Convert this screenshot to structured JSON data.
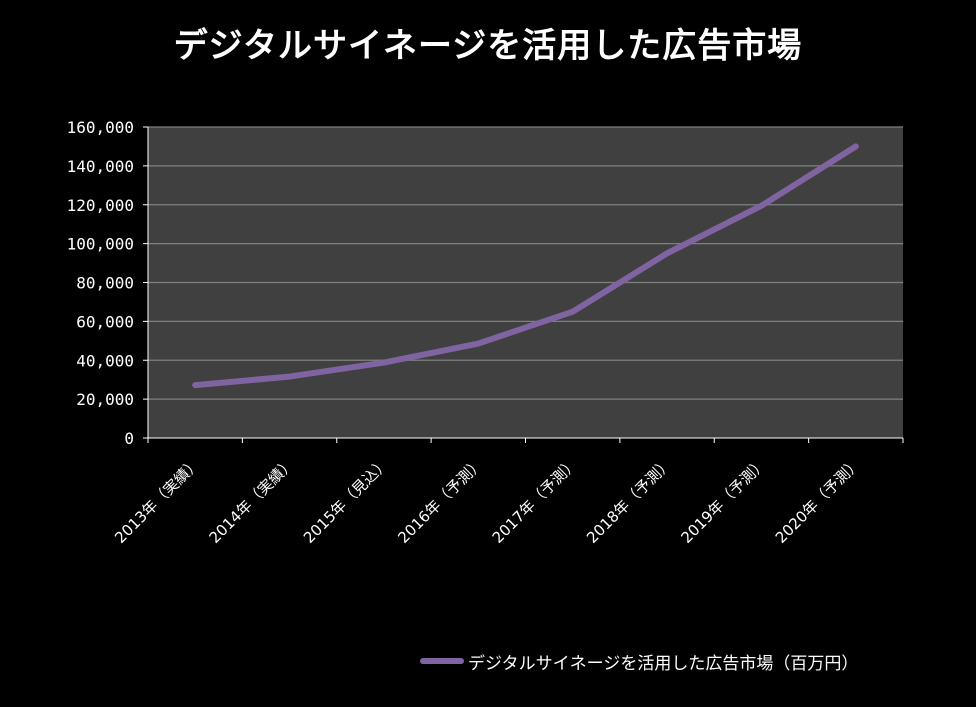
{
  "chart_data": {
    "type": "line",
    "title": "デジタルサイネージを活用した広告市場",
    "categories": [
      "2013年（実績）",
      "2014年（実績）",
      "2015年（見込）",
      "2016年（予測）",
      "2017年（予測）",
      "2018年（予測）",
      "2019年（予測）",
      "2020年（予測）"
    ],
    "series": [
      {
        "name": "デジタルサイネージを活用した広告市場（百万円）",
        "values": [
          27200,
          31600,
          38800,
          48600,
          65000,
          95000,
          119500,
          150000
        ],
        "color": "#8064a2"
      }
    ],
    "ylim": [
      0,
      160000
    ],
    "yticks": [
      "0",
      "20,000",
      "40,000",
      "60,000",
      "80,000",
      "100,000",
      "120,000",
      "140,000",
      "160,000"
    ],
    "grid": true,
    "legend": "bottom-right",
    "plot_background": "#404040",
    "grid_color": "#808080"
  }
}
